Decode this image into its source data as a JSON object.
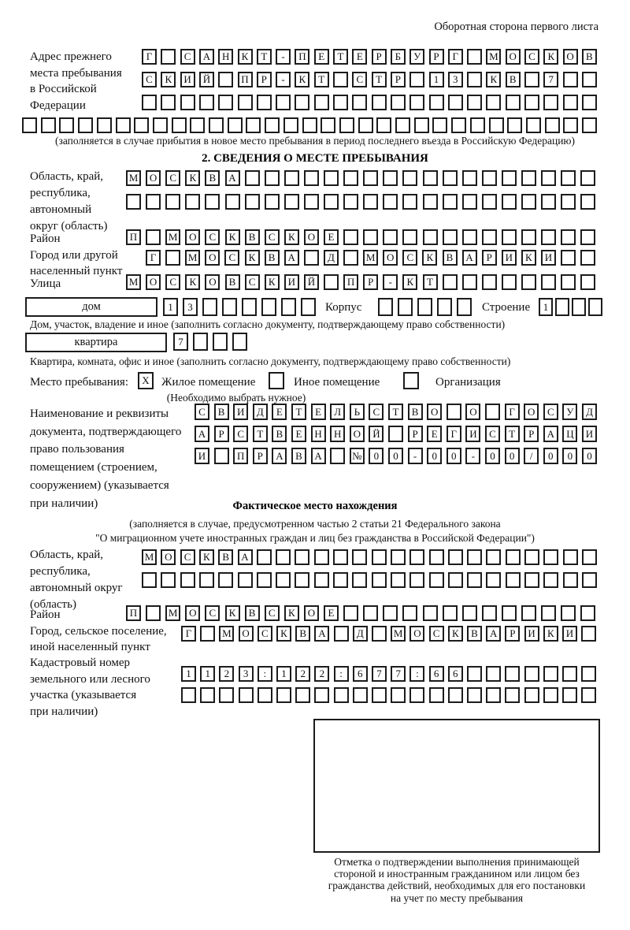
{
  "page": {
    "header": "Оборотная сторона первого листа"
  },
  "prev_address": {
    "label_lines": [
      "Адрес прежнего",
      "места пребывания",
      "в Российской",
      "Федерации"
    ],
    "row1": [
      "Г",
      "",
      "С",
      "А",
      "Н",
      "К",
      "Т",
      "-",
      "П",
      "Е",
      "Т",
      "Е",
      "Р",
      "Б",
      "У",
      "Р",
      "Г",
      "",
      "М",
      "О",
      "С",
      "К",
      "О",
      "В"
    ],
    "row2": [
      "С",
      "К",
      "И",
      "Й",
      "",
      "П",
      "Р",
      "-",
      "К",
      "Т",
      "",
      "С",
      "Т",
      "Р",
      "",
      "1",
      "3",
      "",
      "К",
      "В",
      "",
      "7",
      "",
      ""
    ],
    "row3": [],
    "row4": [],
    "note": "(заполняется в случае прибытия в новое место пребывания в период последнего въезда в Российскую Федерацию)"
  },
  "section2": {
    "title": "2. СВЕДЕНИЯ О МЕСТЕ ПРЕБЫВАНИЯ",
    "oblast": {
      "label_lines": [
        "Область, край,",
        "республика,",
        "автономный",
        "округ (область)"
      ],
      "row1": [
        "М",
        "О",
        "С",
        "К",
        "В",
        "А"
      ],
      "row2": []
    },
    "raion": {
      "label": "Район",
      "row": [
        "П",
        "",
        "М",
        "О",
        "С",
        "К",
        "В",
        "С",
        "К",
        "О",
        "Е"
      ]
    },
    "gorod": {
      "label_lines": [
        "Город или другой",
        "населенный пункт"
      ],
      "row": [
        "Г",
        "",
        "М",
        "О",
        "С",
        "К",
        "В",
        "А",
        "",
        "Д",
        "",
        "М",
        "О",
        "С",
        "К",
        "В",
        "А",
        "Р",
        "И",
        "К",
        "И"
      ]
    },
    "ulitsa": {
      "label": "Улица",
      "row": [
        "М",
        "О",
        "С",
        "К",
        "О",
        "В",
        "С",
        "К",
        "И",
        "Й",
        "",
        "П",
        "Р",
        "-",
        "К",
        "Т"
      ]
    },
    "dom": {
      "box_label": "дом",
      "cells": [
        "1",
        "3",
        "",
        "",
        "",
        "",
        "",
        ""
      ],
      "korpus_label": "Корпус",
      "korpus_cells": [
        "",
        "",
        "",
        "",
        ""
      ],
      "stroenie_label": "Строение",
      "stroenie_cells": [
        "1",
        "",
        "",
        ""
      ],
      "note": "Дом, участок, владение и иное (заполнить согласно документу, подтверждающему право собственности)"
    },
    "kvartira": {
      "box_label": "квартира",
      "cells": [
        "7",
        "",
        "",
        ""
      ],
      "note": "Квартира, комната, офис и иное (заполнить согласно документу, подтверждающему право собственности)"
    },
    "mesto": {
      "label": "Место пребывания:",
      "option1": "Жилое помещение",
      "option1_mark": "X",
      "option2": "Иное помещение",
      "option2_mark": "",
      "option3": "Организация",
      "option3_mark": "",
      "note": "(Необходимо выбрать нужное)"
    },
    "doc": {
      "label_lines": [
        "Наименование и реквизиты",
        "документа, подтверждающего",
        "право пользования",
        "помещением (строением,",
        "сооружением) (указывается",
        "при наличии)"
      ],
      "row1": [
        "С",
        "В",
        "И",
        "Д",
        "Е",
        "Т",
        "Е",
        "Л",
        "Ь",
        "С",
        "Т",
        "В",
        "О",
        "",
        "О",
        "",
        "Г",
        "О",
        "С",
        "У",
        "Д"
      ],
      "row2": [
        "А",
        "Р",
        "С",
        "Т",
        "В",
        "Е",
        "Н",
        "Н",
        "О",
        "Й",
        "",
        "Р",
        "Е",
        "Г",
        "И",
        "С",
        "Т",
        "Р",
        "А",
        "Ц",
        "И"
      ],
      "row3": [
        "И",
        "",
        "П",
        "Р",
        "А",
        "В",
        "А",
        "",
        "№",
        "0",
        "0",
        "-",
        "0",
        "0",
        "-",
        "0",
        "0",
        "/",
        "0",
        "0",
        "0"
      ]
    }
  },
  "section3": {
    "title": "Фактическое место нахождения",
    "note_line1": "(заполняется в случае, предусмотренном частью 2 статьи 21 Федерального закона",
    "note_line2": "\"О миграционном учете иностранных граждан и лиц без гражданства в Российской Федерации\")",
    "oblast": {
      "label_lines": [
        "Область, край,",
        "республика,",
        "автономный округ",
        "(область)"
      ],
      "row1": [
        "М",
        "О",
        "С",
        "К",
        "В",
        "А"
      ],
      "row2": []
    },
    "raion": {
      "label": "Район",
      "row": [
        "П",
        "",
        "М",
        "О",
        "С",
        "К",
        "В",
        "С",
        "К",
        "О",
        "Е"
      ]
    },
    "gorod": {
      "label_lines": [
        "Город, сельское поселение,",
        "иной населенный пункт"
      ],
      "row": [
        "Г",
        "",
        "М",
        "О",
        "С",
        "К",
        "В",
        "А",
        "",
        "Д",
        "",
        "М",
        "О",
        "С",
        "К",
        "В",
        "А",
        "Р",
        "И",
        "К",
        "И"
      ]
    },
    "kadastr": {
      "label_lines": [
        "Кадастровый номер",
        "земельного или лесного",
        "участка (указывается",
        "при наличии)"
      ],
      "row1": [
        "1",
        "1",
        "2",
        "3",
        ":",
        "1",
        "2",
        "2",
        ":",
        "6",
        "7",
        "7",
        ":",
        "6",
        "6"
      ],
      "row2": []
    },
    "stamp_caption_lines": [
      "Отметка о подтверждении выполнения принимающей",
      "стороной и иностранным гражданином или лицом без",
      "гражданства действий, необходимых для его постановки",
      "на учет по месту пребывания"
    ]
  }
}
